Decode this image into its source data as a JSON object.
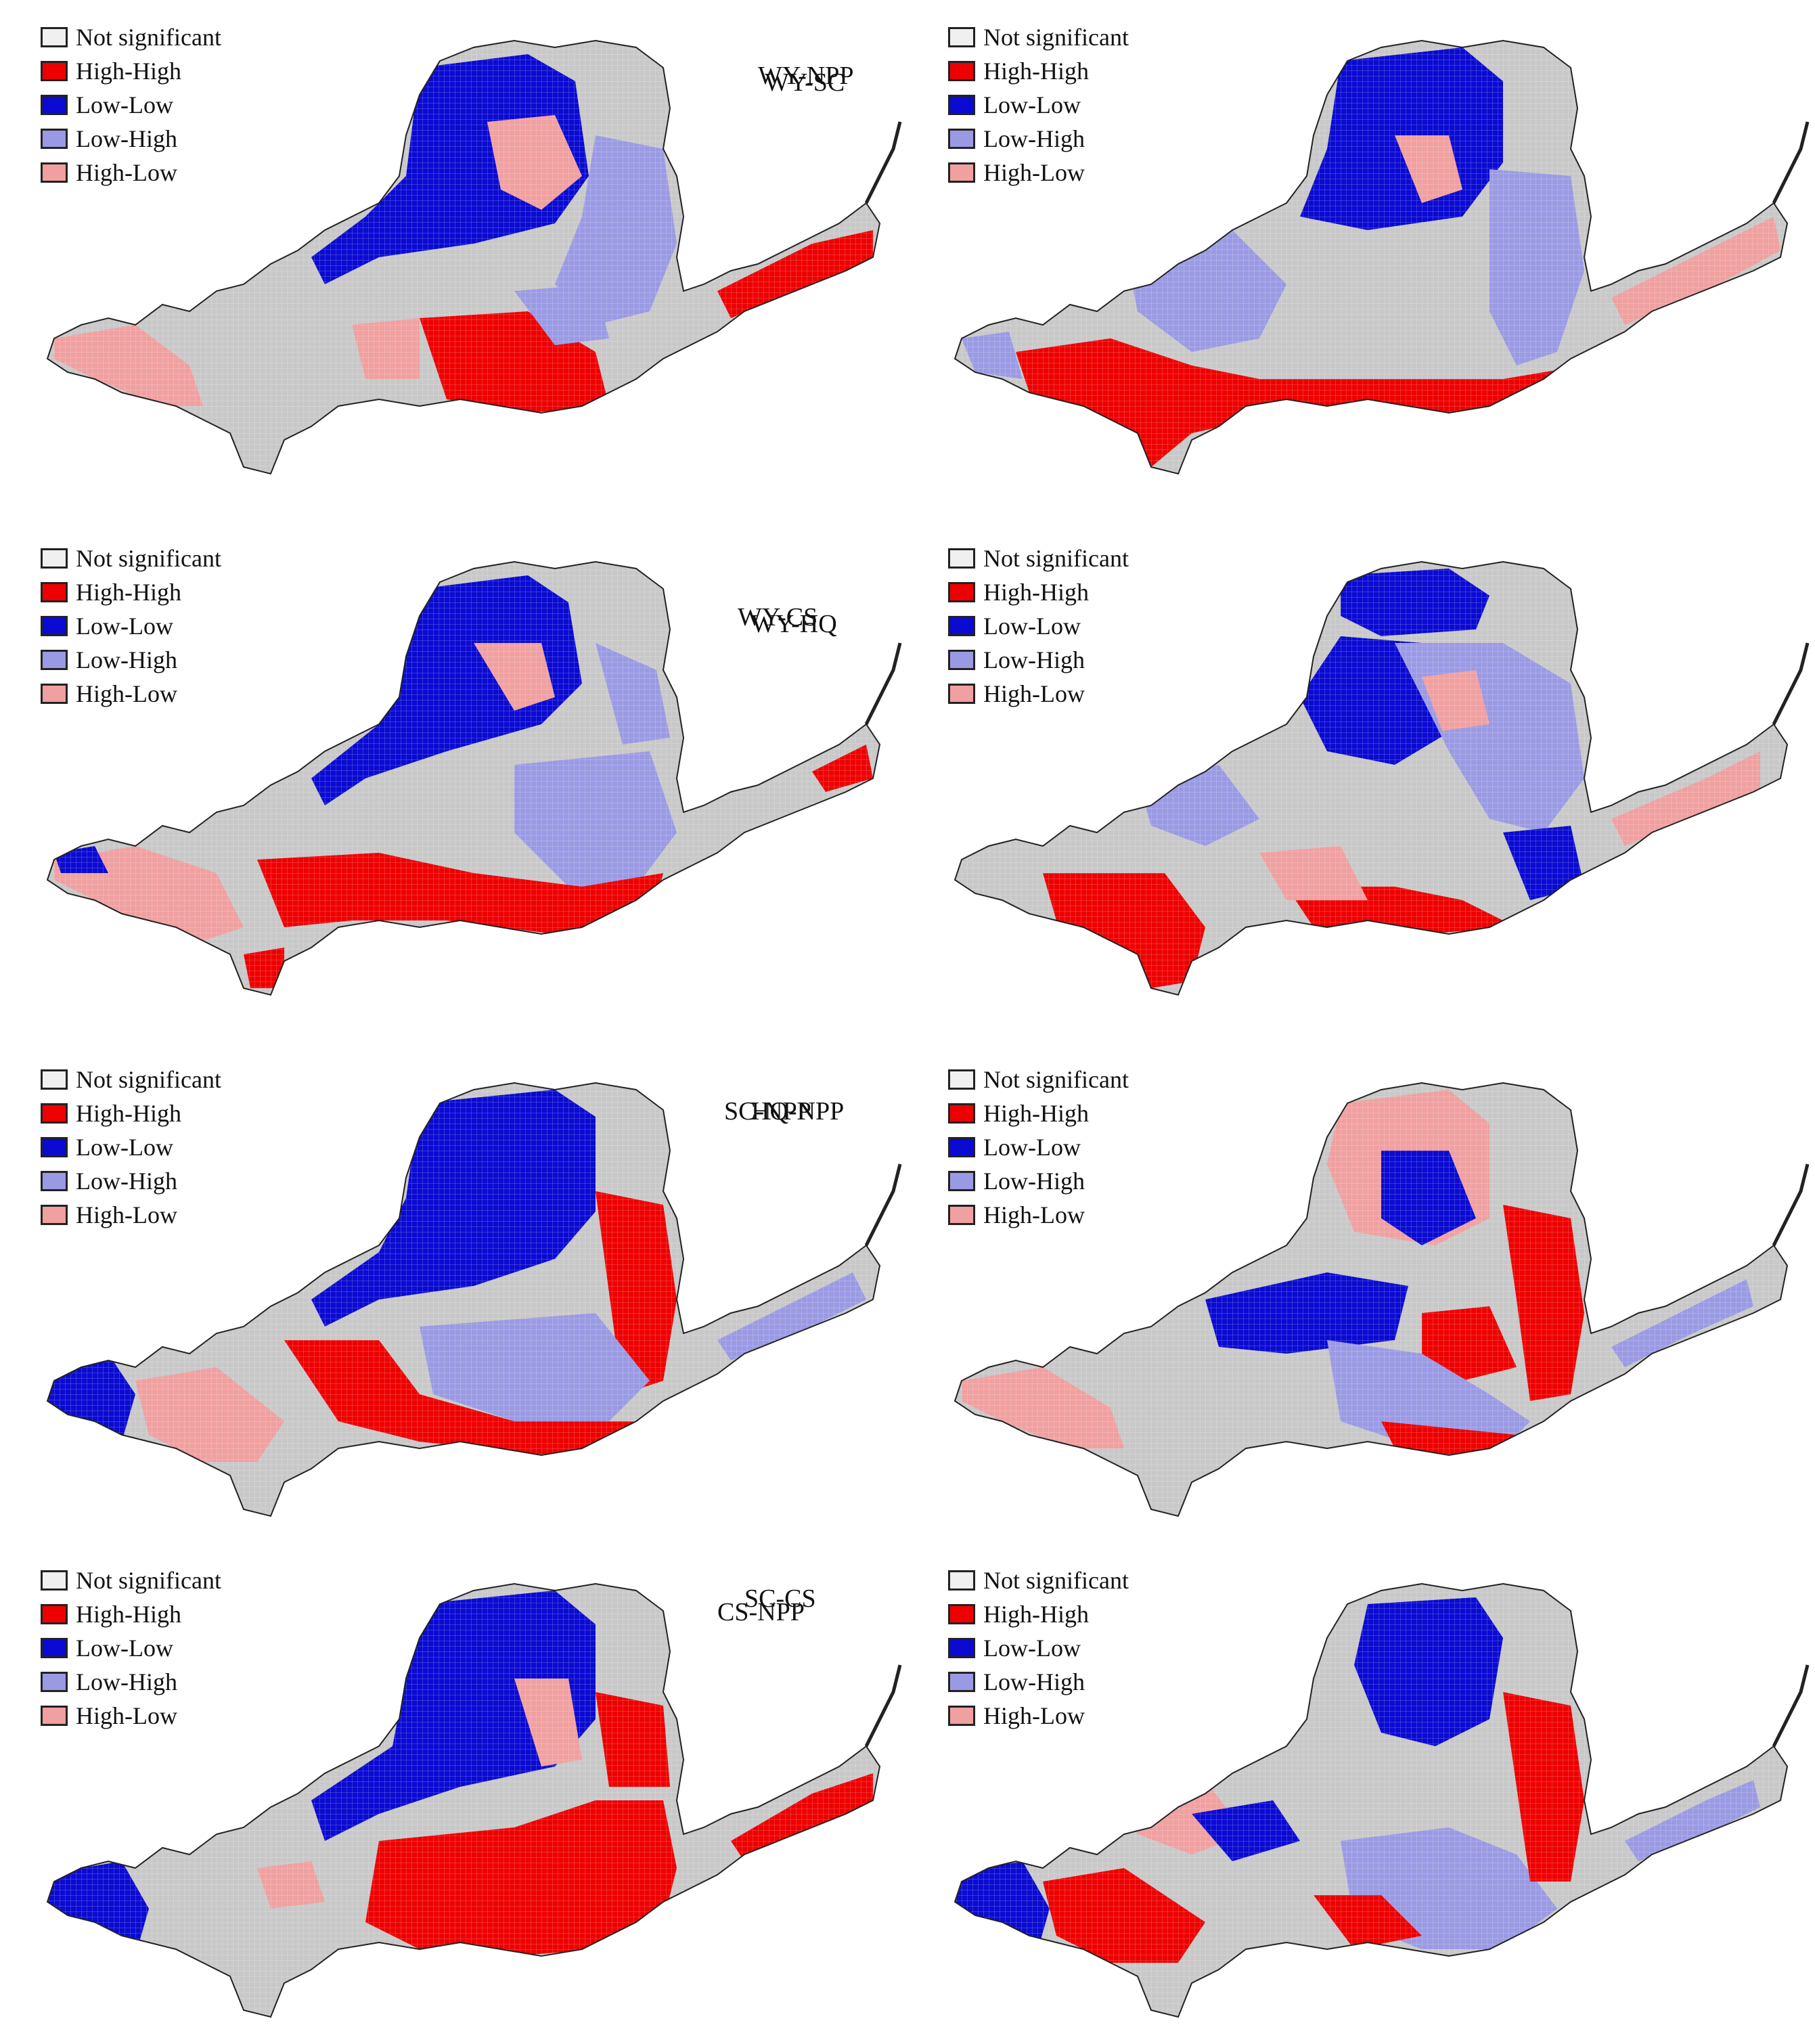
{
  "colors": {
    "not_significant": "#c8c8c8",
    "high_high": "#ee0000",
    "low_low": "#0a0ad2",
    "low_high": "#9a9ae4",
    "high_low": "#f0a0a0",
    "legend_not_significant": "#f0f0f0",
    "boundary": "#222222"
  },
  "legend": {
    "items": [
      {
        "key": "not_significant",
        "label": "Not significant"
      },
      {
        "key": "high_high",
        "label": "High-High"
      },
      {
        "key": "low_low",
        "label": "Low-Low"
      },
      {
        "key": "low_high",
        "label": "Low-High"
      },
      {
        "key": "high_low",
        "label": "High-Low"
      }
    ]
  },
  "panels": [
    {
      "id": "wy-npp",
      "title": "WY-NPP"
    },
    {
      "id": "wy-sc",
      "title": "WY-SC"
    },
    {
      "id": "wy-cs",
      "title": "WY-CS"
    },
    {
      "id": "wy-hq",
      "title": "WY-HQ"
    },
    {
      "id": "sc-npp",
      "title": "SC-NPP"
    },
    {
      "id": "hq-npp",
      "title": "HQ-NPP"
    },
    {
      "id": "cs-npp",
      "title": "CS-NPP"
    },
    {
      "id": "sc-cs",
      "title": "SC-CS"
    }
  ]
}
